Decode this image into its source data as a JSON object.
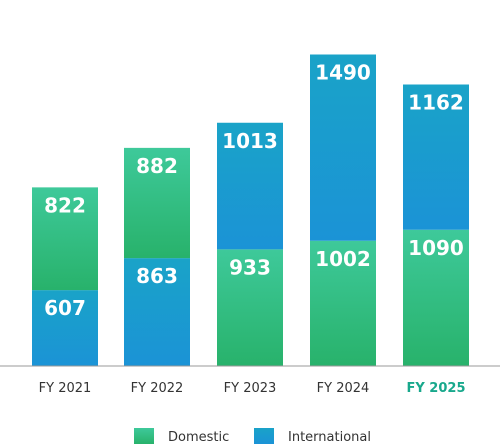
{
  "chart_data": {
    "type": "bar",
    "stacked": true,
    "categories": [
      "FY 2021",
      "FY 2022",
      "FY 2023",
      "FY 2024",
      "FY 2025"
    ],
    "highlight_category": "FY 2025",
    "segments": [
      [
        {
          "series": "International",
          "value": 607,
          "label": "607"
        },
        {
          "series": "Domestic",
          "value": 822,
          "label": "822"
        }
      ],
      [
        {
          "series": "International",
          "value": 863,
          "label": "863"
        },
        {
          "series": "Domestic",
          "value": 882,
          "label": "882"
        }
      ],
      [
        {
          "series": "Domestic",
          "value": 933,
          "label": "933"
        },
        {
          "series": "International",
          "value": 1013,
          "label": "1013"
        }
      ],
      [
        {
          "series": "Domestic",
          "value": 1002,
          "label": "1002"
        },
        {
          "series": "International",
          "value": 1490,
          "label": "1490"
        }
      ],
      [
        {
          "series": "Domestic",
          "value": 1090,
          "label": "1090"
        },
        {
          "series": "International",
          "value": 1162,
          "label": "1162"
        }
      ]
    ],
    "series": [
      {
        "name": "Domestic",
        "color": "#2fb67c"
      },
      {
        "name": "International",
        "color": "#1a9bcc"
      }
    ],
    "title": "",
    "xlabel": "",
    "ylabel": "",
    "grid": false,
    "legend_position": "bottom-center",
    "highlight_color": "#18a88c"
  }
}
